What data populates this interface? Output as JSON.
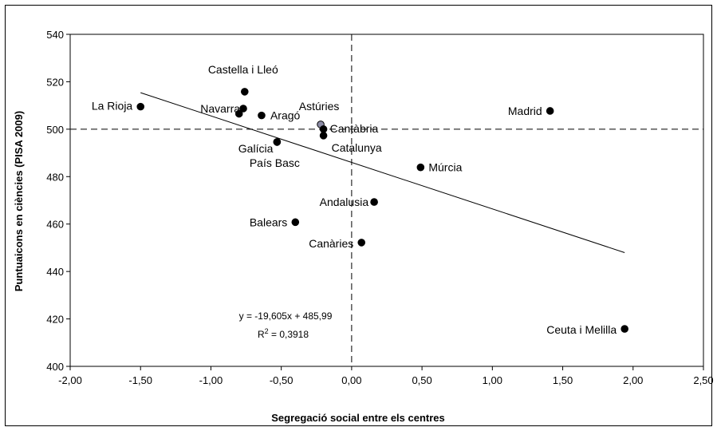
{
  "chart_data": {
    "type": "scatter",
    "xlabel": "Segregació social entre els centres",
    "ylabel": "Puntuaicons en ciències (PISA 2009)",
    "xlim": [
      -2.0,
      2.5
    ],
    "ylim": [
      400,
      540
    ],
    "x_ticks": [
      "-2,00",
      "-1,50",
      "-1,00",
      "-0,50",
      "0,00",
      "0,50",
      "1,00",
      "1,50",
      "2,00",
      "2,50"
    ],
    "y_ticks": [
      "400",
      "420",
      "440",
      "460",
      "480",
      "500",
      "520",
      "540"
    ],
    "x_tick_values": [
      -2.0,
      -1.5,
      -1.0,
      -0.5,
      0.0,
      0.5,
      1.0,
      1.5,
      2.0,
      2.5
    ],
    "y_tick_values": [
      400,
      420,
      440,
      460,
      480,
      500,
      520,
      540
    ],
    "reference_lines": {
      "x": 0.0,
      "y": 500
    },
    "points": [
      {
        "label": "La Rioja",
        "x": -1.5,
        "y": 509.5
      },
      {
        "label": "Castella i Lleó",
        "x": -0.76,
        "y": 515.8
      },
      {
        "label": "Navarra",
        "x": -0.77,
        "y": 508.7
      },
      {
        "label": "",
        "x": -0.8,
        "y": 506.5
      },
      {
        "label": "Aragó",
        "x": -0.64,
        "y": 505.8
      },
      {
        "label": "Galícia",
        "x": -0.53,
        "y": 494.6
      },
      {
        "label": "País Basc",
        "x": -0.53,
        "y": 494.6
      },
      {
        "label": "Astúries",
        "x": -0.22,
        "y": 502.0
      },
      {
        "label": "Cantàbria",
        "x": -0.2,
        "y": 500.0
      },
      {
        "label": "Catalunya",
        "x": -0.2,
        "y": 497.3
      },
      {
        "label": "Madrid",
        "x": 1.41,
        "y": 507.7
      },
      {
        "label": "Múrcia",
        "x": 0.49,
        "y": 483.9
      },
      {
        "label": "Andalusia",
        "x": 0.16,
        "y": 469.3
      },
      {
        "label": "Balears",
        "x": -0.4,
        "y": 460.8
      },
      {
        "label": "Canàries",
        "x": 0.07,
        "y": 452.2
      },
      {
        "label": "Ceuta i Melilla",
        "x": 1.94,
        "y": 415.8
      }
    ],
    "trendline": {
      "slope": -19.605,
      "intercept": 485.99,
      "x_range": [
        -1.5,
        1.94
      ]
    },
    "equation_text": "y = -19,605x + 485,99",
    "r2_prefix": "R",
    "r2_sup": "2",
    "r2_value": " = 0,3918"
  }
}
